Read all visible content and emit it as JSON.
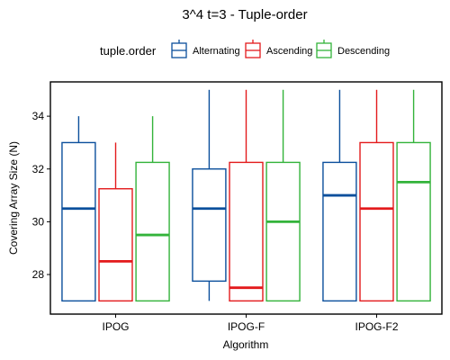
{
  "chart_data": {
    "type": "boxplot",
    "title": "3^4 t=3 - Tuple-order",
    "xlabel": "Algorithm",
    "ylabel": "Covering Array Size (N)",
    "ylim": [
      26.5,
      35.3
    ],
    "yticks": [
      28,
      30,
      32,
      34
    ],
    "grid": false,
    "legend": {
      "title": "tuple.order",
      "placement": "top",
      "entries": [
        "Alternating",
        "Ascending",
        "Descending"
      ]
    },
    "categories": [
      "IPOG",
      "IPOG-F",
      "IPOG-F2"
    ],
    "series": [
      {
        "name": "Alternating",
        "color": "#0b4f9c",
        "boxes": [
          {
            "min": 27,
            "q1": 27,
            "median": 30.5,
            "q3": 33,
            "max": 34
          },
          {
            "min": 27,
            "q1": 27.75,
            "median": 30.5,
            "q3": 32,
            "max": 35
          },
          {
            "min": 27,
            "q1": 27,
            "median": 31,
            "q3": 32.25,
            "max": 35
          }
        ]
      },
      {
        "name": "Ascending",
        "color": "#e31a1c",
        "boxes": [
          {
            "min": 27,
            "q1": 27,
            "median": 28.5,
            "q3": 31.25,
            "max": 33
          },
          {
            "min": 27,
            "q1": 27,
            "median": 27.5,
            "q3": 32.25,
            "max": 35
          },
          {
            "min": 27,
            "q1": 27,
            "median": 30.5,
            "q3": 33,
            "max": 35
          }
        ]
      },
      {
        "name": "Descending",
        "color": "#33b33a",
        "boxes": [
          {
            "min": 27,
            "q1": 27,
            "median": 29.5,
            "q3": 32.25,
            "max": 34
          },
          {
            "min": 27,
            "q1": 27,
            "median": 30,
            "q3": 32.25,
            "max": 35
          },
          {
            "min": 27,
            "q1": 27,
            "median": 31.5,
            "q3": 33,
            "max": 35
          }
        ]
      }
    ]
  }
}
